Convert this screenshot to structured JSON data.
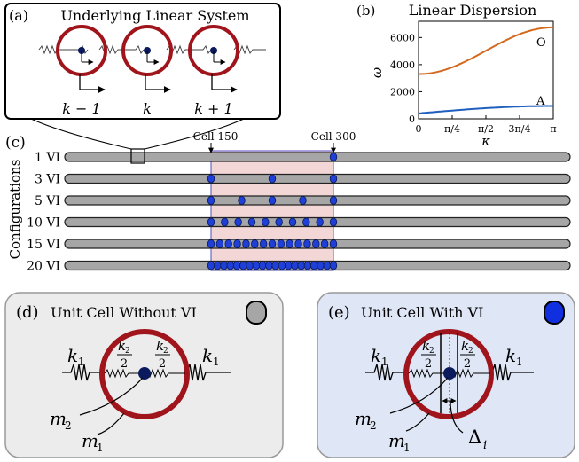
{
  "panel_a": {
    "letter": "(a)",
    "title": "Underlying Linear System",
    "cell_labels": [
      "k − 1",
      "k",
      "k + 1"
    ]
  },
  "panel_b": {
    "letter": "(b)",
    "title": "Linear Dispersion",
    "ylabel": "ω",
    "xlabel": "κ",
    "xticks": [
      "0",
      "π/4",
      "π/2",
      "3π/4",
      "π"
    ],
    "yticks": [
      "0",
      "2000",
      "4000",
      "6000"
    ],
    "optical_label": "O",
    "acoustic_label": "A",
    "colors": {
      "optical": "#d2691e",
      "acoustic": "#1f5fbf"
    }
  },
  "panel_c": {
    "letter": "(c)",
    "axis_label": "Configurations",
    "marker_left": "Cell 150",
    "marker_right": "Cell 300",
    "rows": [
      {
        "label": "1 VI",
        "count": 1
      },
      {
        "label": "3 VI",
        "count": 3
      },
      {
        "label": "5 VI",
        "count": 5
      },
      {
        "label": "10 VI",
        "count": 10
      },
      {
        "label": "15 VI",
        "count": 15
      },
      {
        "label": "20 VI",
        "count": 20
      }
    ],
    "colors": {
      "bar": "#a6a6a6",
      "dot": "#1f3fd6",
      "region": "#f3d6d6"
    }
  },
  "panel_d": {
    "letter": "(d)",
    "title": "Unit Cell Without VI",
    "spring_outer": "k",
    "spring_outer_sub": "1",
    "spring_inner": "k",
    "spring_inner_sub": "2",
    "spring_den": "2",
    "mass_inner": "m",
    "mass_inner_sub": "2",
    "mass_outer": "m",
    "mass_outer_sub": "1",
    "colors": {
      "background": "#ececec",
      "swatch": "#a6a6a6"
    }
  },
  "panel_e": {
    "letter": "(e)",
    "title": "Unit Cell With VI",
    "spring_outer": "k",
    "spring_outer_sub": "1",
    "spring_inner": "k",
    "spring_inner_sub": "2",
    "spring_den": "2",
    "mass_inner": "m",
    "mass_inner_sub": "2",
    "mass_outer": "m",
    "mass_outer_sub": "1",
    "gap": "Δ",
    "gap_sub": "i",
    "colors": {
      "background": "#dfe6f6",
      "swatch": "#1030e0"
    }
  },
  "colors": {
    "ring": "#a0141c",
    "mass": "#0a1a5c"
  }
}
